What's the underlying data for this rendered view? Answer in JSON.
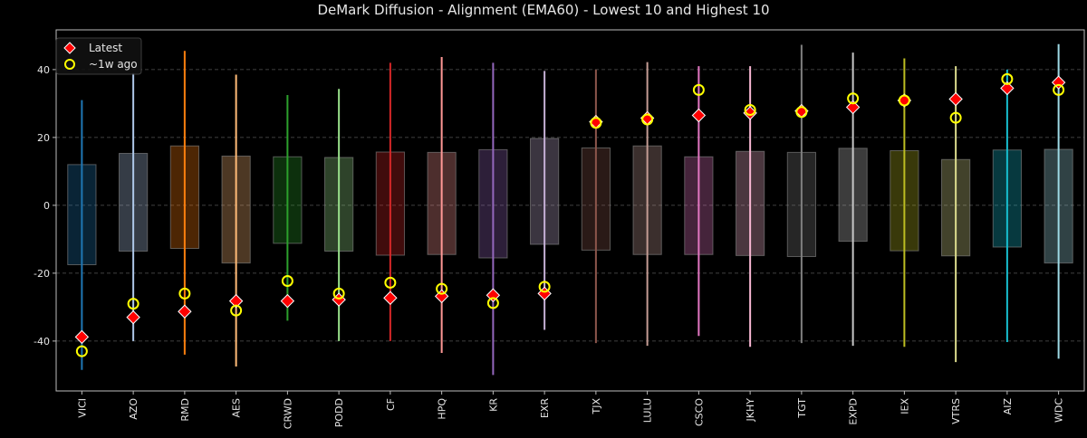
{
  "chart_data": {
    "type": "box-range",
    "title": "DeMark Diffusion - Alignment (EMA60) - Lowest 10 and Highest 10",
    "xlabel": "",
    "ylabel": "",
    "ylim": [
      -54.7,
      51.7
    ],
    "yticks": [
      -40,
      -20,
      0,
      20,
      40
    ],
    "grid": true,
    "legend": {
      "placement": "top-left",
      "entries": [
        {
          "label": "Latest",
          "marker": "red-diamond"
        },
        {
          "label": "~1w ago",
          "marker": "yellow-circle"
        }
      ]
    },
    "categories": [
      "VICI",
      "AZO",
      "RMD",
      "AES",
      "CRWD",
      "PODD",
      "CF",
      "HPQ",
      "KR",
      "EXR",
      "TJX",
      "LULU",
      "CSCO",
      "JKHY",
      "TGT",
      "EXPD",
      "IEX",
      "VTRS",
      "AIZ",
      "WDC"
    ],
    "colors": [
      "#1f77b4",
      "#aec7e8",
      "#ff7f0e",
      "#ffbb78",
      "#2ca02c",
      "#98df8a",
      "#d62728",
      "#ff9896",
      "#9467bd",
      "#c5b0d5",
      "#8c564b",
      "#c49c94",
      "#e377c2",
      "#f7b6d2",
      "#7f7f7f",
      "#c7c7c7",
      "#bcbd22",
      "#dbdb8d",
      "#17becf",
      "#9edae5"
    ],
    "whisker_max": [
      31,
      39,
      45.5,
      38.5,
      32.5,
      34.3,
      42,
      43.7,
      42,
      39.6,
      40,
      42.2,
      41,
      41,
      47.3,
      45,
      43.3,
      41,
      40,
      47.5
    ],
    "whisker_min": [
      -48.5,
      -40,
      -44,
      -47.5,
      -34,
      -40,
      -40,
      -43.5,
      -50,
      -36.7,
      -40.6,
      -41.4,
      -38.5,
      -41.7,
      -40.6,
      -41.4,
      -41.7,
      -46.2,
      -40.3,
      -45.2
    ],
    "box_high": [
      12,
      15.3,
      17.5,
      14.5,
      14.3,
      14.1,
      15.7,
      15.6,
      16.4,
      19.7,
      16.9,
      17.5,
      14.3,
      15.9,
      15.6,
      16.8,
      16.1,
      13.5,
      16.3,
      16.5
    ],
    "box_low": [
      -17.5,
      -13.5,
      -12.7,
      -17,
      -11.2,
      -13.5,
      -14.7,
      -14.5,
      -15.5,
      -11.5,
      -13.2,
      -14.5,
      -14.5,
      -14.8,
      -15.1,
      -10.6,
      -13.4,
      -14.9,
      -12.3,
      -17
    ],
    "series": [
      {
        "name": "Latest",
        "values": [
          -38.8,
          -33,
          -31.3,
          -28.2,
          -28.2,
          -27.8,
          -27.3,
          -26.8,
          -26.5,
          -26,
          24.6,
          25.7,
          26.5,
          27.2,
          27.8,
          28.9,
          30.9,
          31.3,
          34.5,
          36.2
        ]
      },
      {
        "name": "~1w ago",
        "values": [
          -43,
          -29,
          -26,
          -31,
          -22.3,
          -26,
          -22.8,
          -24.6,
          -28.8,
          -24,
          24.3,
          25.3,
          34,
          28.1,
          27.5,
          31.5,
          30.9,
          25.8,
          37.2,
          34
        ]
      }
    ]
  }
}
